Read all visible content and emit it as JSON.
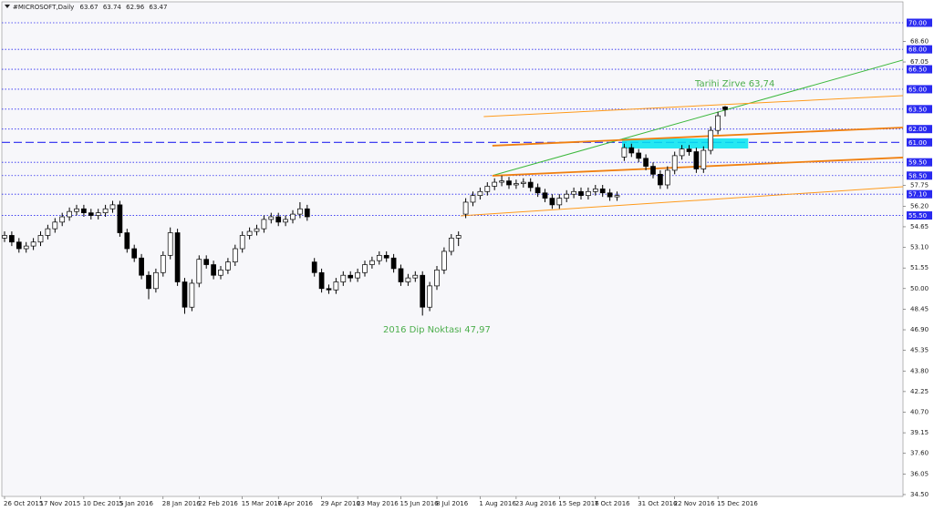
{
  "chart_data": {
    "type": "candlestick",
    "header": "#MICROSOFT,Daily",
    "annotations": [
      "Tarihi Zirve 63,74",
      "2016 Dip Noktası 47,97"
    ],
    "annotation_color": "#4cae4c",
    "up_color": "#ffffff",
    "down_color": "#000000",
    "ylim": [
      34.36,
      70.89
    ],
    "yticks": [
      {
        "value": 34.5,
        "label": "34.50"
      },
      {
        "value": 36.05,
        "label": "36.05"
      },
      {
        "value": 37.6,
        "label": "37.60"
      },
      {
        "value": 39.15,
        "label": "39.15"
      },
      {
        "value": 40.7,
        "label": "40.70"
      },
      {
        "value": 42.25,
        "label": "42.25"
      },
      {
        "value": 43.8,
        "label": "43.80"
      },
      {
        "value": 45.35,
        "label": "45.35"
      },
      {
        "value": 46.9,
        "label": "46.90"
      },
      {
        "value": 48.45,
        "label": "48.45"
      },
      {
        "value": 50,
        "label": "50.00"
      },
      {
        "value": 51.55,
        "label": "51.55"
      },
      {
        "value": 53.1,
        "label": "53.10"
      },
      {
        "value": 54.65,
        "label": "54.65"
      },
      {
        "value": 56.2,
        "label": "56.20"
      },
      {
        "value": 57.75,
        "label": "57.75"
      },
      {
        "value": 67.05,
        "label": "67.05"
      },
      {
        "value": 68.6,
        "label": "68.60"
      }
    ],
    "levels": [
      {
        "value": 70,
        "label": "70.00",
        "style": "dotted"
      },
      {
        "value": 68,
        "label": "68.00",
        "style": "dotted"
      },
      {
        "value": 66.5,
        "label": "66.50",
        "style": "dotted"
      },
      {
        "value": 65,
        "label": "65.00",
        "style": "dotted"
      },
      {
        "value": 63.5,
        "label": "63.50",
        "style": "dotted"
      },
      {
        "value": 62,
        "label": "62.00",
        "style": "dotted"
      },
      {
        "value": 61,
        "label": "61.00",
        "style": "dashed"
      },
      {
        "value": 59.5,
        "label": "59.50",
        "style": "dotted"
      },
      {
        "value": 58.5,
        "label": "58.50",
        "style": "dotted"
      },
      {
        "value": 57.1,
        "label": "57.10",
        "style": "dotted"
      },
      {
        "value": 55.5,
        "label": "55.50",
        "style": "dotted"
      }
    ],
    "level_color": "#2a2af0",
    "zone": {
      "x": [
        85.7,
        103.2
      ],
      "y": [
        60.54,
        61.3
      ],
      "color": "#00e5f0"
    },
    "trendlines": [
      {
        "color": "#3cb83c",
        "style": "thin",
        "points": [
          [
            67.7,
            58.5
          ],
          [
            124.7,
            67.2
          ]
        ]
      },
      {
        "color": "#ff9a1a",
        "style": "thin",
        "points": [
          [
            66.5,
            62.94
          ],
          [
            124.7,
            64.52
          ]
        ]
      },
      {
        "color": "#f08010",
        "style": "thick",
        "points": [
          [
            67.7,
            60.75
          ],
          [
            124.7,
            62.12
          ]
        ]
      },
      {
        "color": "#f08010",
        "style": "thick",
        "points": [
          [
            67.7,
            58.49
          ],
          [
            124.7,
            59.86
          ]
        ]
      },
      {
        "color": "#ff9a1a",
        "style": "thin",
        "points": [
          [
            63.3,
            55.47
          ],
          [
            124.7,
            57.66
          ]
        ]
      }
    ],
    "categories": [
      "26 Oct 2015",
      null,
      null,
      null,
      null,
      "17 Nov 2015",
      null,
      null,
      null,
      null,
      null,
      "10 Dec 2015",
      null,
      null,
      null,
      null,
      "5 Jan 2016",
      null,
      null,
      null,
      null,
      null,
      "28 Jan 2016",
      null,
      null,
      null,
      null,
      "22 Feb 2016",
      null,
      null,
      null,
      null,
      null,
      "15 Mar 2016",
      null,
      null,
      null,
      null,
      "7 Apr 2016",
      null,
      null,
      null,
      null,
      null,
      "29 Apr 2016",
      null,
      null,
      null,
      null,
      "23 May 2016",
      null,
      null,
      null,
      null,
      null,
      "15 Jun 2016",
      null,
      null,
      null,
      null,
      "8 Jul 2016",
      null,
      null,
      null,
      null,
      null,
      "1 Aug 2016",
      null,
      null,
      null,
      null,
      "23 Aug 2016",
      null,
      null,
      null,
      null,
      null,
      "15 Sep 2016",
      null,
      null,
      null,
      null,
      "7 Oct 2016",
      null,
      null,
      null,
      null,
      null,
      "31 Oct 2016",
      null,
      null,
      null,
      null,
      "22 Nov 2016",
      null,
      null,
      null,
      null,
      null,
      "15 Dec 2016",
      null
    ],
    "candles": [
      [
        53.8,
        54.3,
        53.5,
        54.0
      ],
      [
        54.0,
        54.3,
        53.2,
        53.5
      ],
      [
        53.5,
        53.8,
        52.7,
        53.0
      ],
      [
        53.0,
        53.5,
        52.7,
        53.2
      ],
      [
        53.2,
        53.8,
        52.9,
        53.5
      ],
      [
        53.5,
        54.3,
        53.2,
        54.0
      ],
      [
        54.0,
        54.8,
        53.7,
        54.5
      ],
      [
        54.5,
        55.3,
        54.2,
        55.0
      ],
      [
        55.0,
        55.7,
        54.7,
        55.4
      ],
      [
        55.4,
        56.1,
        55.1,
        55.8
      ],
      [
        55.8,
        56.3,
        55.5,
        56.0
      ],
      [
        56.0,
        56.3,
        55.4,
        55.7
      ],
      [
        55.7,
        56.0,
        55.2,
        55.5
      ],
      [
        55.5,
        56.0,
        55.2,
        55.7
      ],
      [
        55.7,
        56.3,
        55.4,
        56.0
      ],
      [
        56.0,
        56.6,
        55.7,
        56.3
      ],
      [
        56.3,
        56.6,
        53.9,
        54.2
      ],
      [
        54.2,
        54.5,
        52.7,
        53.0
      ],
      [
        53.0,
        53.3,
        52.0,
        52.3
      ],
      [
        52.3,
        52.6,
        50.7,
        51.0
      ],
      [
        51.0,
        51.3,
        49.2,
        50.0
      ],
      [
        50.0,
        51.5,
        49.7,
        51.2
      ],
      [
        51.2,
        52.8,
        50.9,
        52.5
      ],
      [
        52.5,
        54.6,
        52.2,
        54.2
      ],
      [
        54.2,
        54.5,
        50.2,
        50.5
      ],
      [
        50.5,
        50.8,
        48.1,
        48.6
      ],
      [
        48.6,
        50.7,
        48.3,
        50.4
      ],
      [
        50.4,
        52.5,
        50.1,
        52.2
      ],
      [
        52.2,
        52.5,
        51.5,
        51.8
      ],
      [
        51.8,
        52.1,
        50.7,
        51.0
      ],
      [
        51.0,
        51.7,
        50.7,
        51.4
      ],
      [
        51.4,
        52.3,
        51.1,
        52.0
      ],
      [
        52.0,
        53.3,
        51.7,
        53.0
      ],
      [
        53.0,
        54.3,
        52.7,
        54.0
      ],
      [
        54.0,
        54.6,
        53.7,
        54.3
      ],
      [
        54.3,
        54.8,
        54.0,
        54.5
      ],
      [
        54.5,
        55.5,
        54.2,
        55.2
      ],
      [
        55.2,
        55.7,
        54.9,
        55.4
      ],
      [
        55.4,
        55.7,
        54.7,
        55.0
      ],
      [
        55.0,
        55.5,
        54.7,
        55.2
      ],
      [
        55.2,
        55.9,
        54.9,
        55.6
      ],
      [
        55.6,
        56.5,
        55.3,
        56.0
      ],
      [
        56.0,
        56.3,
        55.1,
        55.4
      ],
      [
        52.0,
        52.3,
        50.9,
        51.2
      ],
      [
        51.2,
        51.5,
        49.7,
        50.0
      ],
      [
        50.0,
        50.3,
        49.6,
        49.9
      ],
      [
        49.9,
        50.8,
        49.6,
        50.5
      ],
      [
        50.5,
        51.3,
        50.2,
        51.0
      ],
      [
        51.0,
        51.3,
        50.5,
        50.8
      ],
      [
        50.8,
        51.5,
        50.5,
        51.2
      ],
      [
        51.2,
        52.1,
        50.9,
        51.8
      ],
      [
        51.8,
        52.4,
        51.5,
        52.1
      ],
      [
        52.1,
        52.8,
        51.8,
        52.5
      ],
      [
        52.5,
        52.8,
        52.0,
        52.3
      ],
      [
        52.3,
        52.6,
        51.2,
        51.5
      ],
      [
        51.5,
        51.8,
        50.2,
        50.5
      ],
      [
        50.5,
        51.1,
        50.2,
        50.8
      ],
      [
        50.8,
        51.3,
        50.5,
        51.0
      ],
      [
        51.0,
        51.3,
        47.97,
        48.6
      ],
      [
        48.6,
        50.5,
        48.3,
        50.2
      ],
      [
        50.2,
        51.7,
        49.9,
        51.4
      ],
      [
        51.4,
        53.1,
        51.1,
        52.8
      ],
      [
        52.8,
        54.1,
        52.5,
        53.8
      ],
      [
        53.8,
        54.3,
        53.2,
        54.0
      ],
      [
        55.6,
        56.8,
        55.3,
        56.5
      ],
      [
        56.5,
        57.3,
        56.2,
        57.0
      ],
      [
        57.0,
        57.6,
        56.7,
        57.3
      ],
      [
        57.3,
        58.0,
        57.0,
        57.7
      ],
      [
        57.7,
        58.3,
        57.4,
        58.0
      ],
      [
        58.0,
        58.5,
        57.7,
        58.1
      ],
      [
        58.1,
        58.4,
        57.5,
        57.8
      ],
      [
        57.8,
        58.2,
        57.5,
        57.9
      ],
      [
        57.9,
        58.3,
        57.6,
        58.0
      ],
      [
        58.0,
        58.3,
        57.3,
        57.6
      ],
      [
        57.6,
        57.9,
        56.9,
        57.2
      ],
      [
        57.2,
        57.5,
        56.5,
        56.8
      ],
      [
        56.8,
        57.1,
        56.0,
        56.3
      ],
      [
        56.3,
        57.1,
        56.0,
        56.8
      ],
      [
        56.8,
        57.4,
        56.5,
        57.1
      ],
      [
        57.1,
        57.6,
        56.8,
        57.3
      ],
      [
        57.3,
        57.6,
        56.7,
        57.0
      ],
      [
        57.0,
        57.6,
        56.7,
        57.3
      ],
      [
        57.3,
        57.8,
        57.0,
        57.5
      ],
      [
        57.5,
        57.8,
        56.9,
        57.2
      ],
      [
        57.2,
        57.5,
        56.6,
        56.9
      ],
      [
        56.9,
        57.3,
        56.6,
        57.0
      ],
      [
        59.9,
        60.9,
        59.6,
        60.6
      ],
      [
        60.6,
        60.9,
        59.9,
        60.2
      ],
      [
        60.2,
        60.5,
        59.5,
        59.8
      ],
      [
        59.8,
        60.1,
        58.9,
        59.2
      ],
      [
        59.2,
        59.5,
        58.3,
        58.6
      ],
      [
        58.6,
        58.9,
        57.5,
        57.8
      ],
      [
        57.8,
        59.2,
        57.5,
        58.9
      ],
      [
        58.9,
        60.3,
        58.6,
        60.0
      ],
      [
        60.0,
        60.8,
        59.7,
        60.5
      ],
      [
        60.5,
        60.8,
        60.0,
        60.3
      ],
      [
        60.3,
        60.6,
        58.7,
        59.0
      ],
      [
        59.0,
        60.7,
        58.7,
        60.4
      ],
      [
        60.4,
        62.2,
        60.1,
        61.9
      ],
      [
        61.9,
        63.3,
        61.6,
        63.0
      ],
      [
        63.67,
        63.74,
        62.96,
        63.47
      ]
    ]
  }
}
